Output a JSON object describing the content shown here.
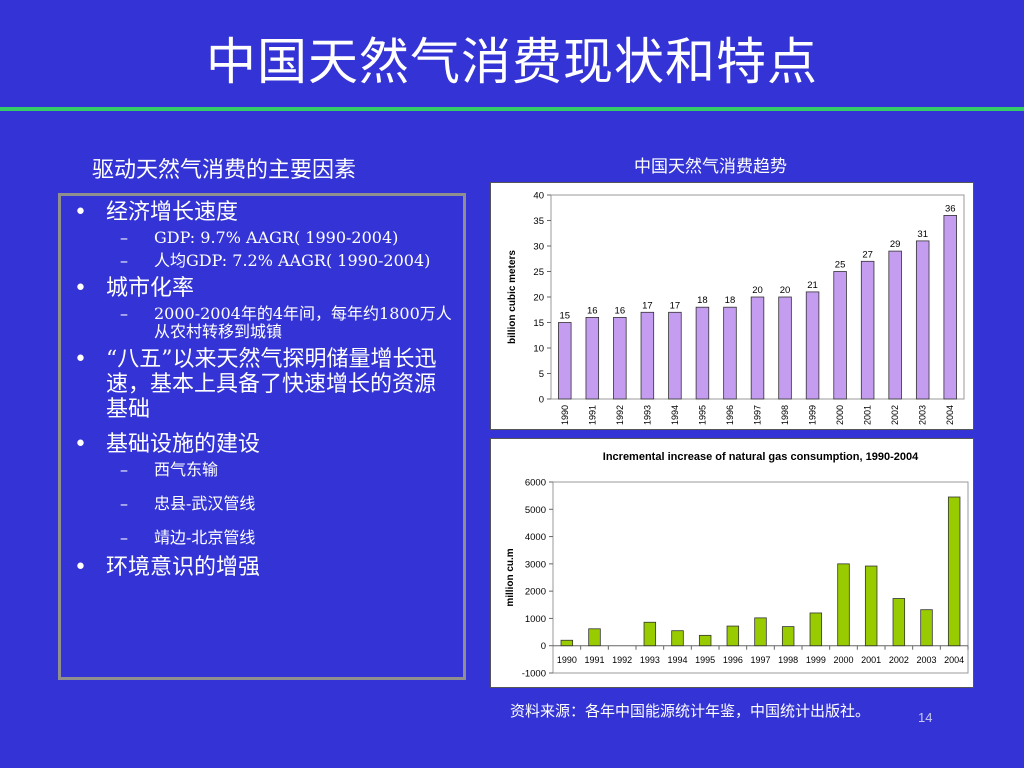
{
  "slide": {
    "title": "中国天然气消费现状和特点",
    "left_heading": "驱动天然气消费的主要因素",
    "right_heading": "中国天然气消费趋势",
    "source": "资料来源：各年中国能源统计年鉴，中国统计出版社。",
    "page_number": "14"
  },
  "bullets": [
    {
      "text": "经济增长速度",
      "subs": [
        "GDP: 9.7% AAGR( 1990-2004)",
        "人均GDP: 7.2% AAGR( 1990-2004)"
      ]
    },
    {
      "text": "城市化率",
      "subs": [
        "2000-2004年的4年间，每年约1800万人从农村转移到城镇"
      ]
    },
    {
      "text": "“八五”以来天然气探明储量增长迅速，基本上具备了快速增长的资源基础",
      "subs": []
    },
    {
      "text": "基础设施的建设",
      "subs": [
        "西气东输",
        "忠县-武汉管线",
        "靖边-北京管线"
      ]
    },
    {
      "text": "环境意识的增强",
      "subs": []
    }
  ],
  "colors": {
    "background": "#3434d6",
    "rule": "#33cc66",
    "bar1": "#c49df0",
    "bar2": "#99cc00"
  },
  "chart_data": [
    {
      "type": "bar",
      "title": "",
      "ylabel": "billion cubic meters",
      "categories": [
        "1990",
        "1991",
        "1992",
        "1993",
        "1994",
        "1995",
        "1996",
        "1997",
        "1998",
        "1999",
        "2000",
        "2001",
        "2002",
        "2003",
        "2004"
      ],
      "values": [
        15,
        16,
        16,
        17,
        17,
        18,
        18,
        20,
        20,
        21,
        25,
        27,
        29,
        31,
        36
      ],
      "data_labels": [
        "15",
        "16",
        "16",
        "17",
        "17",
        "18",
        "18",
        "20",
        "20",
        "21",
        "25",
        "27",
        "29",
        "31",
        "36"
      ],
      "ylim": [
        0,
        40
      ],
      "yticks": [
        0,
        5,
        10,
        15,
        20,
        25,
        30,
        35,
        40
      ],
      "grid": false
    },
    {
      "type": "bar",
      "title": "Incremental increase of natural gas consumption, 1990-2004",
      "ylabel": "million cu.m",
      "categories": [
        "1990",
        "1991",
        "1992",
        "1993",
        "1994",
        "1995",
        "1996",
        "1997",
        "1998",
        "1999",
        "2000",
        "2001",
        "2002",
        "2003",
        "2004"
      ],
      "values": [
        200,
        620,
        0,
        860,
        550,
        380,
        720,
        1020,
        700,
        1200,
        3000,
        2920,
        1730,
        1320,
        5450
      ],
      "ylim": [
        -1000,
        6000
      ],
      "yticks": [
        -1000,
        0,
        1000,
        2000,
        3000,
        4000,
        5000,
        6000
      ],
      "grid": false
    }
  ]
}
